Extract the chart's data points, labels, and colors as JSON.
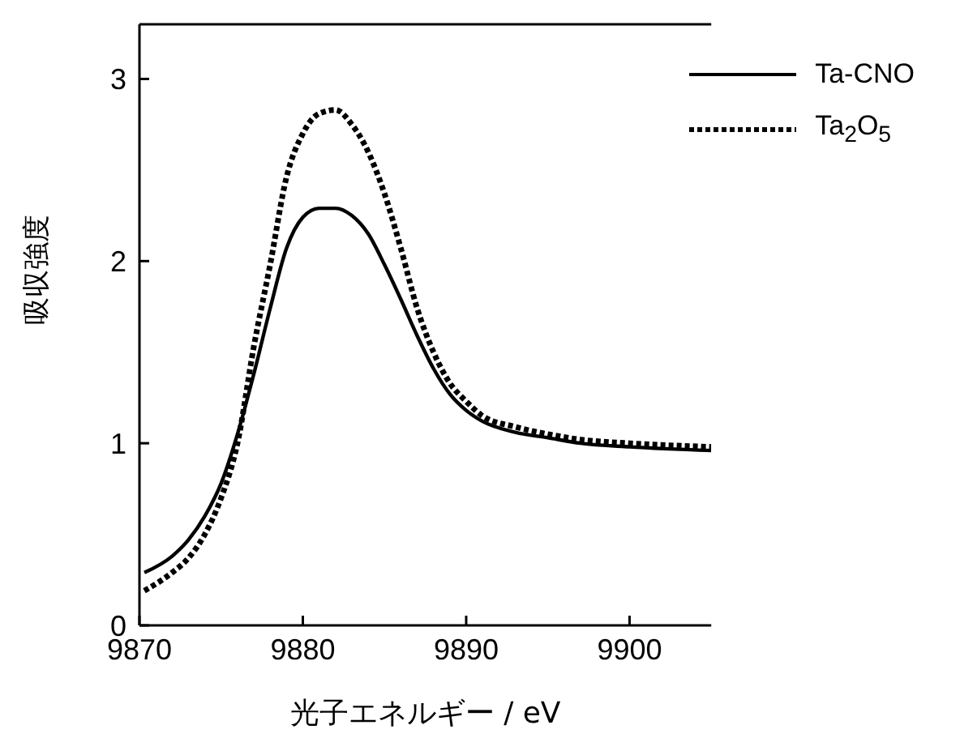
{
  "chart_data": {
    "type": "line",
    "xlabel": "光子エネルギー / eV",
    "ylabel": "吸収強度",
    "xlim": [
      9870,
      9905
    ],
    "xticks": [
      9870,
      9880,
      9890,
      9900
    ],
    "ylim": [
      0,
      3.3
    ],
    "yticks": [
      0,
      1,
      2,
      3
    ],
    "grid": false,
    "legend": "top right",
    "marker": "none",
    "series": [
      {
        "name": "Ta-CNO",
        "color": "#000000",
        "line_style": "solid",
        "x": [
          9870.3,
          9872,
          9873,
          9874,
          9875,
          9876,
          9877,
          9878,
          9879,
          9880,
          9881,
          9882,
          9883,
          9884,
          9885,
          9886,
          9887,
          9888,
          9889,
          9890,
          9891,
          9893,
          9895,
          9897,
          9900,
          9905
        ],
        "values": [
          0.29,
          0.38,
          0.47,
          0.6,
          0.78,
          1.05,
          1.38,
          1.74,
          2.07,
          2.24,
          2.29,
          2.29,
          2.25,
          2.15,
          1.98,
          1.79,
          1.59,
          1.41,
          1.27,
          1.18,
          1.12,
          1.06,
          1.03,
          1.0,
          0.98,
          0.96
        ]
      },
      {
        "name": "Ta$_{2}$O$_{5}$",
        "color": "#000000",
        "line_style": "dotted",
        "x": [
          9870.3,
          9872,
          9873,
          9874,
          9875,
          9876,
          9877,
          9878,
          9879,
          9880,
          9881,
          9882,
          9883,
          9884,
          9885,
          9886,
          9887,
          9888,
          9889,
          9890,
          9891,
          9893,
          9895,
          9897,
          9900,
          9905
        ],
        "values": [
          0.19,
          0.29,
          0.37,
          0.5,
          0.7,
          1.0,
          1.53,
          1.98,
          2.46,
          2.7,
          2.81,
          2.83,
          2.75,
          2.6,
          2.37,
          2.07,
          1.74,
          1.5,
          1.33,
          1.23,
          1.15,
          1.09,
          1.05,
          1.02,
          1.0,
          0.98
        ]
      }
    ]
  }
}
